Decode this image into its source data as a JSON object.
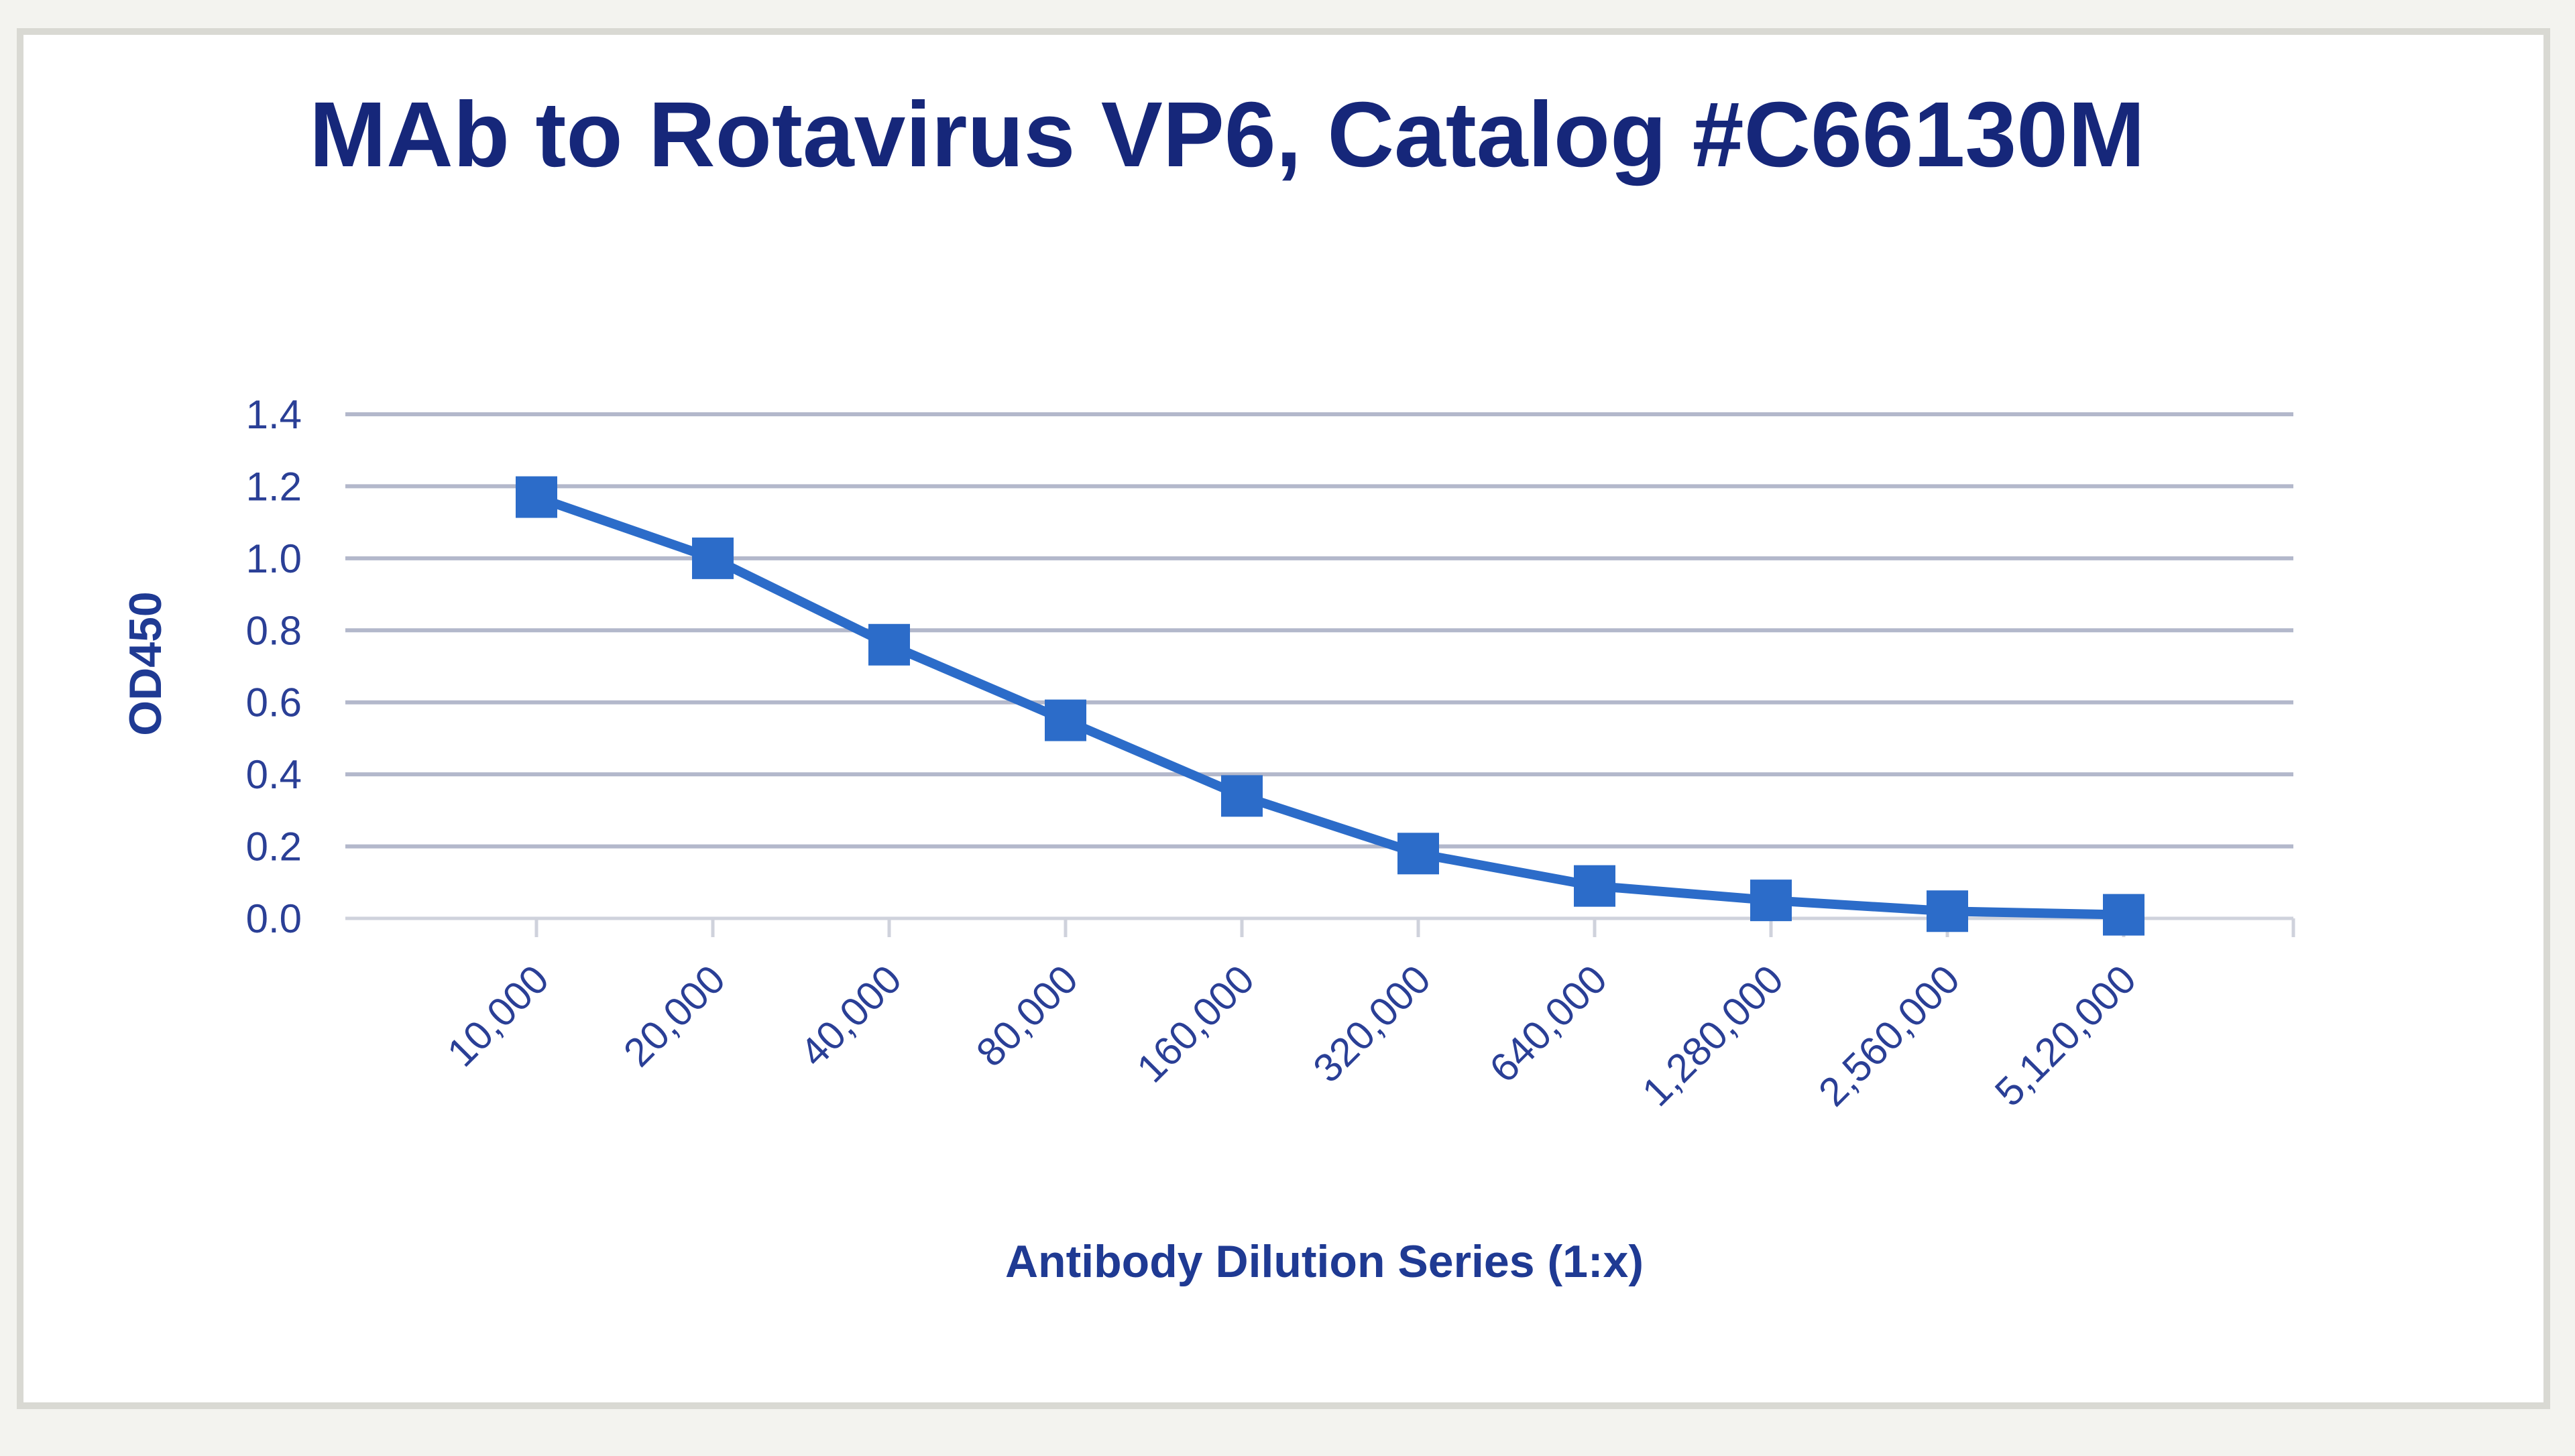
{
  "chart_data": {
    "type": "line",
    "title": "MAb to Rotavirus VP6, Catalog #C66130M",
    "xlabel": "Antibody Dilution Series (1:x)",
    "ylabel": "OD450",
    "categories": [
      "10,000",
      "20,000",
      "40,000",
      "80,000",
      "160,000",
      "320,000",
      "640,000",
      "1,280,000",
      "2,560,000",
      "5,120,000"
    ],
    "yticks": [
      "0.0",
      "0.2",
      "0.4",
      "0.6",
      "0.8",
      "1.0",
      "1.2",
      "1.4"
    ],
    "ylim": [
      0,
      1.4
    ],
    "grid": true,
    "legend": "none",
    "series": [
      {
        "values": [
          1.17,
          1.0,
          0.76,
          0.55,
          0.34,
          0.18,
          0.09,
          0.05,
          0.02,
          0.01
        ],
        "color": "#2c6cc9",
        "marker": "square"
      }
    ]
  }
}
